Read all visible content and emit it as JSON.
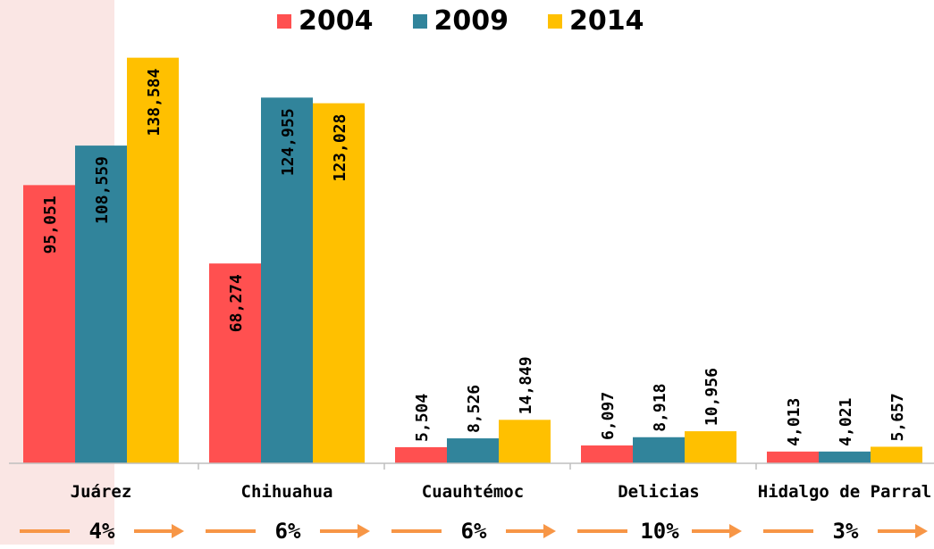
{
  "legend": {
    "items": [
      {
        "label": "2004",
        "color": "#FF5050"
      },
      {
        "label": "2009",
        "color": "#31849B"
      },
      {
        "label": "2014",
        "color": "#FFC000"
      }
    ]
  },
  "highlight_color": "#FAE6E4",
  "arrow_color": "#F79646",
  "chart_data": {
    "type": "bar",
    "categories": [
      "Juárez",
      "Chihuahua",
      "Cuauhtémoc",
      "Delicias",
      "Hidalgo de Parral"
    ],
    "series": [
      {
        "name": "2004",
        "color": "#FF5050",
        "values": [
          95051,
          68274,
          5504,
          6097,
          4013
        ],
        "labels": [
          "95,051",
          "68,274",
          "5,504",
          "6,097",
          "4,013"
        ]
      },
      {
        "name": "2009",
        "color": "#31849B",
        "values": [
          108559,
          124955,
          8526,
          8918,
          4021
        ],
        "labels": [
          "108,559",
          "124,955",
          "8,526",
          "8,918",
          "4,021"
        ]
      },
      {
        "name": "2014",
        "color": "#FFC000",
        "values": [
          138584,
          123028,
          14849,
          10956,
          5657
        ],
        "labels": [
          "138,584",
          "123,028",
          "14,849",
          "10,956",
          "5,657"
        ]
      }
    ],
    "growth_rates": [
      "4%",
      "6%",
      "6%",
      "10%",
      "3%"
    ],
    "ylim": [
      0,
      140000
    ],
    "legend_position": "top",
    "grid": false,
    "highlighted_category": "Juárez"
  }
}
